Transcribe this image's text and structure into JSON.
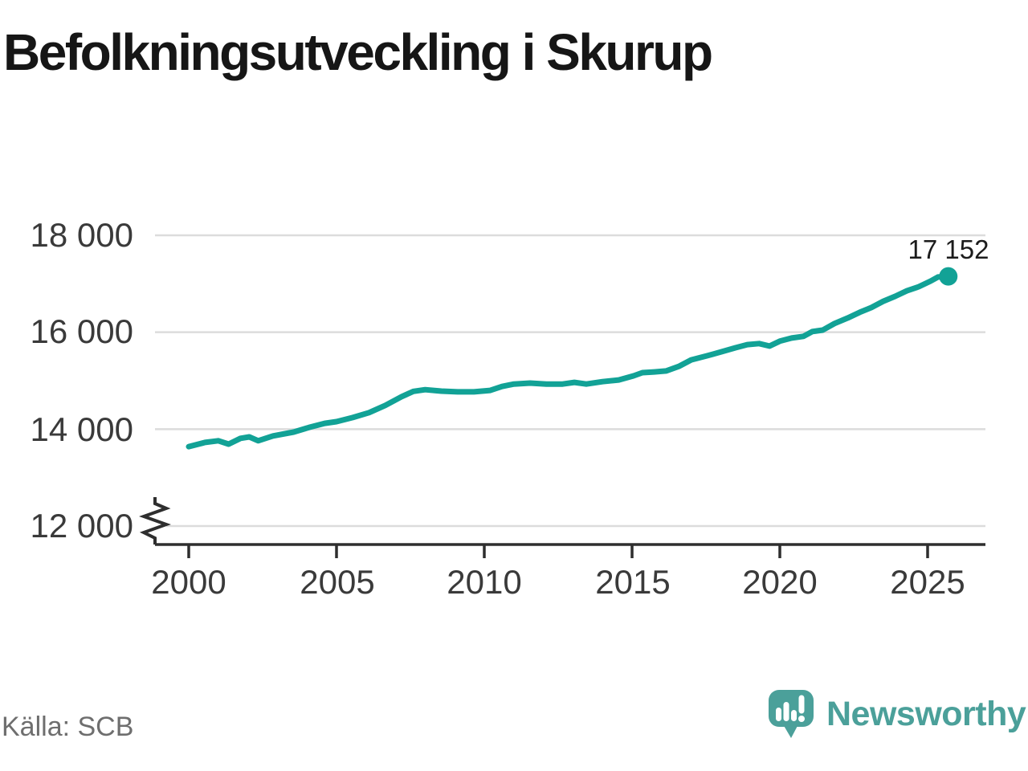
{
  "title": "Befolkningsutveckling i Skurup",
  "footer": {
    "source": "Källa: SCB",
    "brand_name": "Newsworthy"
  },
  "colors": {
    "line": "#12a296",
    "grid": "#dcdcdc",
    "axis": "#2e2e2e",
    "tick_text": "#3a3a3a",
    "title_text": "#161616",
    "value_label_text": "#1c1c1c",
    "source_text": "#6e6e6e",
    "brand": "#4ba09a"
  },
  "icons": {
    "logo": "newsworthy-bar-chart-speech-bubble-icon",
    "axis_break": "y-axis-break-zigzag-icon"
  },
  "chart_data": {
    "type": "line",
    "title": "Befolkningsutveckling i Skurup",
    "xlabel": "",
    "ylabel": "",
    "x_ticks": [
      2000,
      2005,
      2010,
      2015,
      2020,
      2025
    ],
    "x_tick_labels": [
      "2000",
      "2005",
      "2010",
      "2015",
      "2020",
      "2025"
    ],
    "y_ticks": [
      12000,
      14000,
      16000,
      18000
    ],
    "y_tick_labels": [
      "12 000",
      "14 000",
      "16 000",
      "18 000"
    ],
    "xlim": [
      1998.9,
      2027
    ],
    "ylim": [
      12000,
      18000
    ],
    "y_axis_break": true,
    "grid": "horizontal",
    "legend": "none",
    "end_label": "17 152",
    "end_point": {
      "year": 2025.7,
      "value": 17152
    },
    "series": [
      {
        "points": [
          [
            2000.0,
            13640
          ],
          [
            2000.55,
            13725
          ],
          [
            2001.0,
            13760
          ],
          [
            2001.35,
            13690
          ],
          [
            2001.75,
            13810
          ],
          [
            2002.05,
            13840
          ],
          [
            2002.35,
            13760
          ],
          [
            2002.85,
            13860
          ],
          [
            2003.55,
            13940
          ],
          [
            2004.1,
            14040
          ],
          [
            2004.6,
            14120
          ],
          [
            2005.0,
            14155
          ],
          [
            2005.55,
            14240
          ],
          [
            2006.1,
            14340
          ],
          [
            2006.65,
            14490
          ],
          [
            2007.2,
            14670
          ],
          [
            2007.6,
            14780
          ],
          [
            2008.0,
            14815
          ],
          [
            2008.55,
            14785
          ],
          [
            2009.1,
            14770
          ],
          [
            2009.65,
            14770
          ],
          [
            2010.2,
            14800
          ],
          [
            2010.6,
            14880
          ],
          [
            2011.0,
            14930
          ],
          [
            2011.55,
            14950
          ],
          [
            2012.1,
            14930
          ],
          [
            2012.65,
            14930
          ],
          [
            2013.05,
            14965
          ],
          [
            2013.45,
            14930
          ],
          [
            2014.0,
            14980
          ],
          [
            2014.55,
            15015
          ],
          [
            2015.05,
            15100
          ],
          [
            2015.35,
            15165
          ],
          [
            2015.75,
            15180
          ],
          [
            2016.15,
            15200
          ],
          [
            2016.6,
            15300
          ],
          [
            2017.0,
            15430
          ],
          [
            2017.55,
            15515
          ],
          [
            2018.05,
            15600
          ],
          [
            2018.5,
            15680
          ],
          [
            2018.9,
            15745
          ],
          [
            2019.3,
            15765
          ],
          [
            2019.65,
            15715
          ],
          [
            2020.0,
            15815
          ],
          [
            2020.4,
            15880
          ],
          [
            2020.8,
            15915
          ],
          [
            2021.1,
            16015
          ],
          [
            2021.45,
            16045
          ],
          [
            2021.85,
            16180
          ],
          [
            2022.3,
            16295
          ],
          [
            2022.7,
            16410
          ],
          [
            2023.1,
            16510
          ],
          [
            2023.5,
            16640
          ],
          [
            2023.9,
            16740
          ],
          [
            2024.3,
            16855
          ],
          [
            2024.7,
            16940
          ],
          [
            2025.1,
            17055
          ],
          [
            2025.35,
            17140
          ],
          [
            2025.7,
            17152
          ]
        ]
      }
    ]
  }
}
